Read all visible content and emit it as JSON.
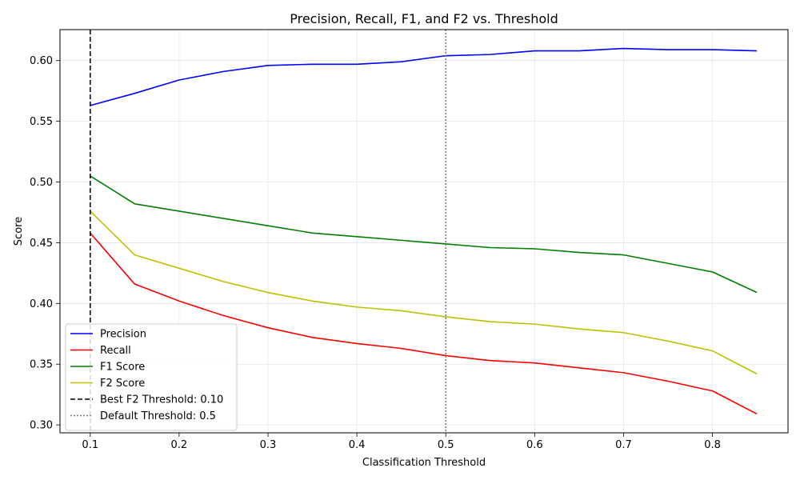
{
  "chart_data": {
    "type": "line",
    "title": "Precision, Recall, F1, and F2 vs. Threshold",
    "xlabel": "Classification Threshold",
    "ylabel": "Score",
    "xlim": [
      0.066,
      0.885
    ],
    "ylim": [
      0.2935,
      0.6255
    ],
    "xticks": [
      0.1,
      0.2,
      0.3,
      0.4,
      0.5,
      0.6,
      0.7,
      0.8
    ],
    "xtick_labels": [
      "0.1",
      "0.2",
      "0.3",
      "0.4",
      "0.5",
      "0.6",
      "0.7",
      "0.8"
    ],
    "yticks": [
      0.3,
      0.35,
      0.4,
      0.45,
      0.5,
      0.55,
      0.6
    ],
    "ytick_labels": [
      "0.30",
      "0.35",
      "0.40",
      "0.45",
      "0.50",
      "0.55",
      "0.60"
    ],
    "grid": true,
    "legend_position": "lower-left",
    "x": [
      0.1,
      0.15,
      0.2,
      0.25,
      0.3,
      0.35,
      0.4,
      0.45,
      0.5,
      0.55,
      0.6,
      0.65,
      0.7,
      0.75,
      0.8,
      0.85
    ],
    "series": [
      {
        "name": "Precision",
        "color": "#0000ff",
        "values": [
          0.563,
          0.573,
          0.584,
          0.591,
          0.596,
          0.597,
          0.597,
          0.599,
          0.604,
          0.605,
          0.608,
          0.608,
          0.61,
          0.609,
          0.609,
          0.608
        ]
      },
      {
        "name": "Recall",
        "color": "#ff0000",
        "values": [
          0.458,
          0.416,
          0.402,
          0.39,
          0.38,
          0.372,
          0.367,
          0.363,
          0.357,
          0.353,
          0.351,
          0.347,
          0.343,
          0.336,
          0.328,
          0.309
        ]
      },
      {
        "name": "F1 Score",
        "color": "#008000",
        "values": [
          0.505,
          0.482,
          0.476,
          0.47,
          0.464,
          0.458,
          0.455,
          0.452,
          0.449,
          0.446,
          0.445,
          0.442,
          0.44,
          0.433,
          0.426,
          0.409
        ]
      },
      {
        "name": "F2 Score",
        "color": "#bfbf00",
        "values": [
          0.476,
          0.44,
          0.429,
          0.418,
          0.409,
          0.402,
          0.397,
          0.394,
          0.389,
          0.385,
          0.383,
          0.379,
          0.376,
          0.369,
          0.361,
          0.342
        ]
      }
    ],
    "vlines": [
      {
        "name": "Best F2 Threshold: 0.10",
        "x": 0.1,
        "color": "#000000",
        "style": "dashed"
      },
      {
        "name": "Default Threshold: 0.5",
        "x": 0.5,
        "color": "#808080",
        "style": "dotted"
      }
    ]
  }
}
